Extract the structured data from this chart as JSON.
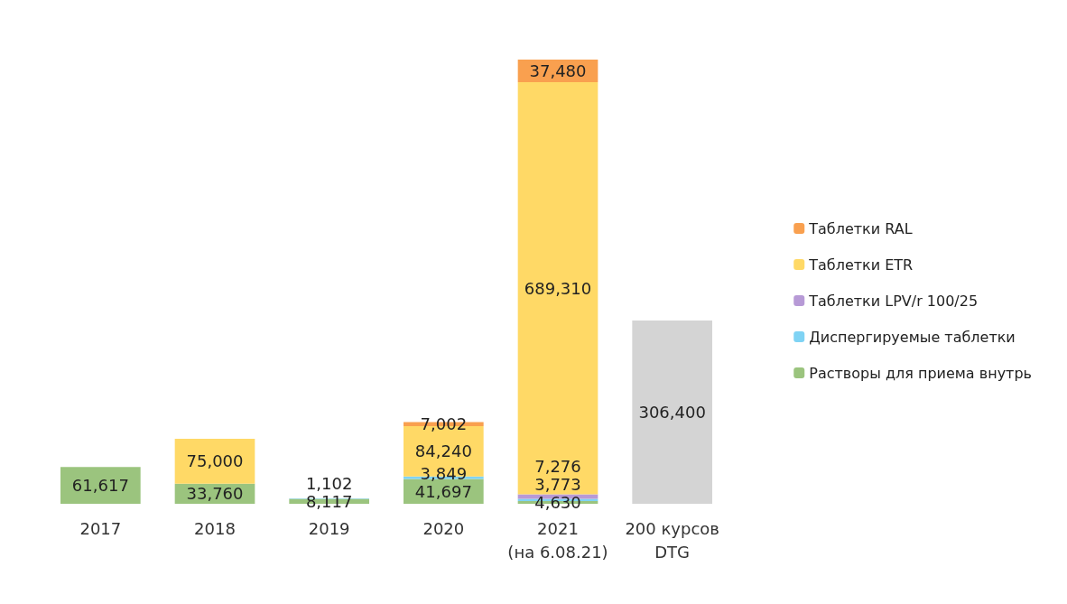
{
  "chart_data": {
    "type": "bar",
    "stacked": true,
    "legend": "right",
    "categories": [
      "2017",
      "2018",
      "2019",
      "2020",
      "2021\n(на 6.08.21)",
      "200 курсов\nDTG"
    ],
    "series": [
      {
        "name": "Растворы для приема внутрь",
        "color": "#9bc47e",
        "values": [
          61617,
          33760,
          8117,
          41697,
          4630,
          null
        ],
        "value_labels": [
          "61,617",
          "33,760",
          "8,117",
          "41,697",
          "4,630",
          null
        ]
      },
      {
        "name": "Диспергируемые таблетки",
        "color": "#7fd3f4",
        "values": [
          null,
          null,
          1102,
          3849,
          3773,
          null
        ],
        "value_labels": [
          null,
          null,
          "1,102",
          "3,849",
          "3,773",
          null
        ]
      },
      {
        "name": "Таблетки LPV/r 100/25",
        "color": "#b79ad6",
        "values": [
          null,
          null,
          null,
          null,
          7276,
          null
        ],
        "value_labels": [
          null,
          null,
          null,
          null,
          "7,276",
          null
        ]
      },
      {
        "name": "Таблетки ETR",
        "color": "#ffd966",
        "values": [
          null,
          75000,
          null,
          84240,
          689310,
          null
        ],
        "value_labels": [
          null,
          "75,000",
          null,
          "84,240",
          "689,310",
          null
        ]
      },
      {
        "name": "Таблетки RAL",
        "color": "#f9a04f",
        "values": [
          null,
          null,
          null,
          7002,
          37480,
          null
        ],
        "value_labels": [
          null,
          null,
          null,
          "7,002",
          "37,480",
          null
        ]
      },
      {
        "color": "#d4d4d4",
        "values": [
          null,
          null,
          null,
          null,
          null,
          306400
        ],
        "value_labels": [
          null,
          null,
          null,
          null,
          null,
          "306,400"
        ]
      }
    ]
  }
}
